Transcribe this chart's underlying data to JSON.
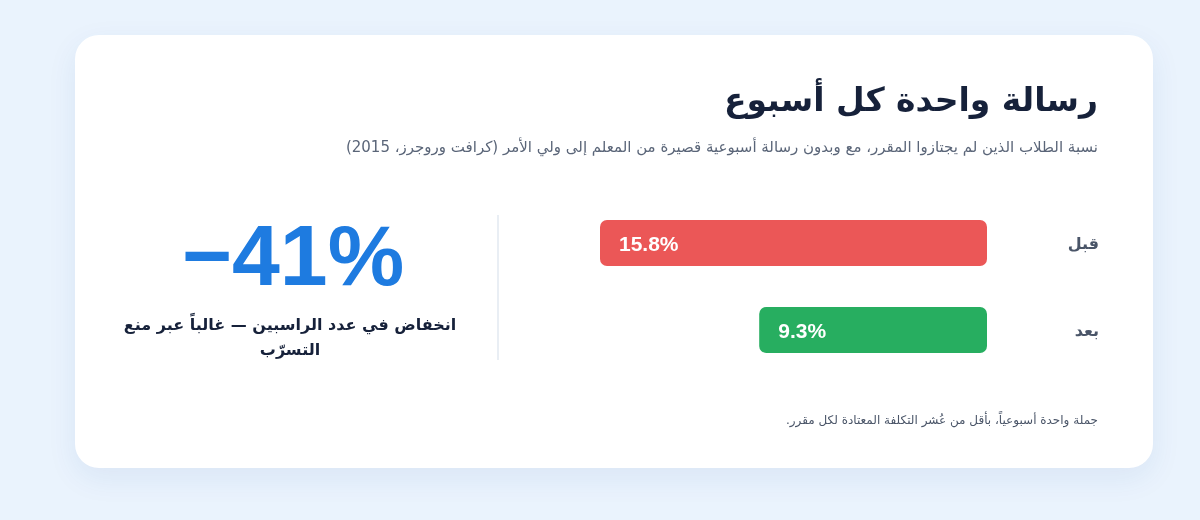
{
  "chart_data": {
    "type": "bar",
    "orientation": "horizontal",
    "title": "رسالة واحدة كل أسبوع",
    "subtitle": "نسبة الطلاب الذين لم يجتازوا المقرر، مع وبدون رسالة أسبوعية قصيرة من المعلم إلى ولي الأمر (كرافت وروجرز، 2015)",
    "categories": [
      "قبل",
      "بعد"
    ],
    "values": [
      15.8,
      9.3
    ],
    "colors": [
      "#eb5757",
      "#27ae60"
    ],
    "value_labels": [
      "15.8%",
      "9.3%"
    ],
    "annotations": [
      "−41%",
      "انخفاض في عدد الراسبين — غالباً عبر منع التسرّب",
      "جملة واحدة أسبوعياً، بأقل من عُشر التكلفة المعتادة لكل مقرر."
    ]
  }
}
